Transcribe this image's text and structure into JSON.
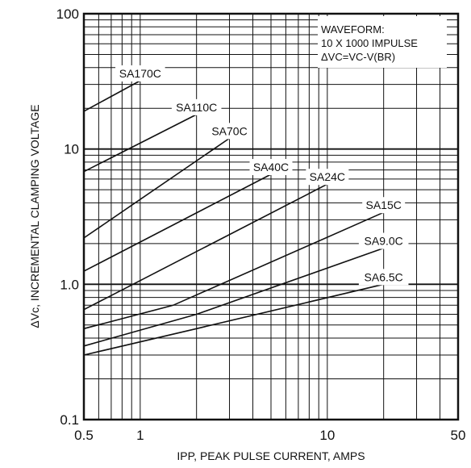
{
  "chart_data": {
    "type": "line",
    "title": "",
    "xlabel": "IPP, PEAK PULSE CURRENT, AMPS",
    "ylabel": "ΔVc, INCREMENTAL CLAMPING VOLTAGE",
    "x_scale": "log",
    "y_scale": "log",
    "xlim": [
      0.5,
      50
    ],
    "ylim": [
      0.1,
      100
    ],
    "x_ticks": [
      {
        "value": 0.5,
        "label": "0.5"
      },
      {
        "value": 1,
        "label": "1"
      },
      {
        "value": 10,
        "label": "10"
      },
      {
        "value": 50,
        "label": "50"
      }
    ],
    "y_ticks": [
      {
        "value": 0.1,
        "label": "0.1"
      },
      {
        "value": 1,
        "label": "1.0"
      },
      {
        "value": 10,
        "label": "10"
      },
      {
        "value": 100,
        "label": "100"
      }
    ],
    "grid": true,
    "annotation": {
      "lines": [
        "WAVEFORM:",
        "10 X 1000 IMPULSE",
        "ΔVC=VC-V(BR)"
      ]
    },
    "series": [
      {
        "name": "SA170C",
        "points": [
          [
            0.5,
            19
          ],
          [
            1.0,
            32
          ]
        ]
      },
      {
        "name": "SA110C",
        "points": [
          [
            0.5,
            6.8
          ],
          [
            2.0,
            18
          ]
        ]
      },
      {
        "name": "SA70C",
        "points": [
          [
            0.5,
            2.2
          ],
          [
            3.0,
            12
          ]
        ]
      },
      {
        "name": "SA40C",
        "points": [
          [
            0.5,
            1.25
          ],
          [
            5.0,
            6.5
          ]
        ]
      },
      {
        "name": "SA24C",
        "points": [
          [
            0.5,
            0.65
          ],
          [
            10.0,
            5.5
          ]
        ]
      },
      {
        "name": "SA15C",
        "points": [
          [
            0.5,
            0.47
          ],
          [
            1.5,
            0.7
          ],
          [
            20.0,
            3.4
          ]
        ]
      },
      {
        "name": "SA9.0C",
        "points": [
          [
            0.5,
            0.35
          ],
          [
            2.0,
            0.6
          ],
          [
            20.0,
            1.85
          ]
        ]
      },
      {
        "name": "SA6.5C",
        "points": [
          [
            0.5,
            0.3
          ],
          [
            2.0,
            0.47
          ],
          [
            20.0,
            1.0
          ]
        ]
      }
    ]
  }
}
